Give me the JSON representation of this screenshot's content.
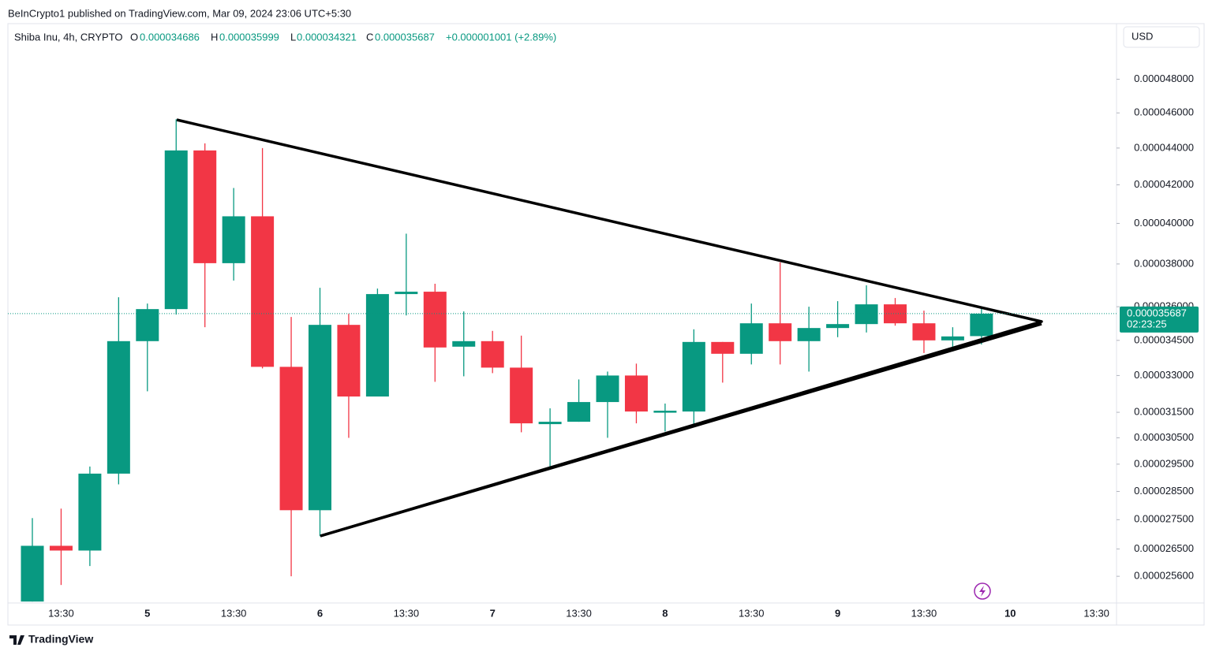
{
  "header": {
    "published": "BeInCrypto1 published on TradingView.com, Mar 09, 2024 23:06 UTC+5:30",
    "currency": "USD",
    "footer": "TradingView"
  },
  "chart_data": {
    "type": "candlestick",
    "title": "Shiba Inu, 4h, CRYPTO",
    "ohlc_letters": [
      "O",
      "H",
      "L",
      "C"
    ],
    "change": "+0.000001001 (+2.89%)",
    "countdown": "02:23:25",
    "up_color": "#089981",
    "down_color": "#f23645",
    "log_scale": true,
    "grid": false,
    "categories": [
      null,
      "13:30",
      null,
      null,
      "5",
      null,
      null,
      "13:30",
      null,
      null,
      "6",
      null,
      null,
      "13:30",
      null,
      null,
      "7",
      null,
      null,
      "13:30",
      null,
      null,
      "8",
      null,
      null,
      "13:30",
      null,
      null,
      "9",
      null,
      null,
      "13:30",
      null,
      null,
      "10",
      null,
      null,
      "13:30"
    ],
    "open": [
      2.4795e-05,
      2.6606e-05,
      2.6447e-05,
      2.9149e-05,
      3.4466e-05,
      3.5892e-05,
      4.3868e-05,
      3.8038e-05,
      4.0361e-05,
      3.3364e-05,
      2.7831e-05,
      3.5183e-05,
      3.2135e-05,
      3.658e-05,
      3.669e-05,
      3.4226e-05,
      3.4466e-05,
      3.3331e-05,
      3.1032e-05,
      3.1125e-05,
      3.1911e-05,
      3.3e-05,
      3.15e-05,
      3.1531e-05,
      3.4431e-05,
      3.392e-05,
      3.5253e-05,
      3.4466e-05,
      3.5043e-05,
      3.5218e-05,
      3.6108e-05,
      3.5253e-05,
      3.45e-05,
      3.4686e-05,
      null,
      null,
      null,
      null
    ],
    "high": [
      2.7555e-05,
      2.7887e-05,
      2.9412e-05,
      3.6434e-05,
      3.6144e-05,
      4.5634e-05,
      4.4264e-05,
      4.1833e-05,
      4.4e-05,
      3.5536e-05,
      3.6873e-05,
      3.5679e-05,
      3.6837e-05,
      3.9484e-05,
      3.7061e-05,
      3.5786e-05,
      3.4916e-05,
      3.4707e-05,
      3.1658e-05,
      3.2836e-05,
      3.3165e-05,
      3.35e-05,
      3.185e-05,
      3.4986e-05,
      3.4431e-05,
      3.6144e-05,
      3.8076e-05,
      3.6e-05,
      3.6253e-05,
      3.6987e-05,
      3.6399e-05,
      3.5822e-05,
      3.5078e-05,
      3.5999e-05,
      null,
      null,
      null,
      null
    ],
    "low": [
      2.4795e-05,
      2.532e-05,
      2.5934e-05,
      2.8757e-05,
      3.2348e-05,
      3.5642e-05,
      3.5078e-05,
      3.7212e-05,
      3.33e-05,
      2.56e-05,
      2.693e-05,
      3.05e-05,
      3.2135e-05,
      3.5606e-05,
      3.2738e-05,
      3.2967e-05,
      3.3099e-05,
      3.0714e-05,
      2.9353e-05,
      3.1125e-05,
      3.05e-05,
      3.1063e-05,
      3.0745e-05,
      3.097e-05,
      3.2705e-05,
      3.3466e-05,
      3.3466e-05,
      3.3165e-05,
      3.4639e-05,
      3.4846e-05,
      3.5148e-05,
      3.3953e-05,
      3.402e-05,
      3.4321e-05,
      null,
      null,
      null,
      null
    ],
    "close": [
      2.6606e-05,
      2.6447e-05,
      2.9149e-05,
      3.4466e-05,
      3.5892e-05,
      4.3868e-05,
      3.8038e-05,
      4.0361e-05,
      3.3364e-05,
      2.7831e-05,
      3.5183e-05,
      3.2135e-05,
      3.658e-05,
      3.669e-05,
      3.4191e-05,
      3.4466e-05,
      3.3331e-05,
      3.1063e-05,
      3.1125e-05,
      3.1911e-05,
      3.3e-05,
      3.1531e-05,
      3.1563e-05,
      3.4431e-05,
      3.392e-05,
      3.5253e-05,
      3.4466e-05,
      3.5043e-05,
      3.5218e-05,
      3.6108e-05,
      3.5253e-05,
      3.45e-05,
      3.4673e-05,
      3.5687e-05,
      null,
      null,
      null,
      null
    ],
    "ylim": [
      2.475e-05,
      5.16e-05
    ],
    "yticks": [
      {
        "value": 2.56e-05,
        "label": "0.000025600"
      },
      {
        "value": 2.65e-05,
        "label": "0.000026500"
      },
      {
        "value": 2.75e-05,
        "label": "0.000027500"
      },
      {
        "value": 2.85e-05,
        "label": "0.000028500"
      },
      {
        "value": 2.95e-05,
        "label": "0.000029500"
      },
      {
        "value": 3.05e-05,
        "label": "0.000030500"
      },
      {
        "value": 3.15e-05,
        "label": "0.000031500"
      },
      {
        "value": 3.3e-05,
        "label": "0.000033000"
      },
      {
        "value": 3.45e-05,
        "label": "0.000034500"
      },
      {
        "value": 3.6e-05,
        "label": "0.000036000"
      },
      {
        "value": 3.8e-05,
        "label": "0.000038000"
      },
      {
        "value": 4e-05,
        "label": "0.000040000"
      },
      {
        "value": 4.2e-05,
        "label": "0.000042000"
      },
      {
        "value": 4.4e-05,
        "label": "0.000044000"
      },
      {
        "value": 4.6e-05,
        "label": "0.000046000"
      },
      {
        "value": 4.8e-05,
        "label": "0.000048000"
      }
    ]
  }
}
